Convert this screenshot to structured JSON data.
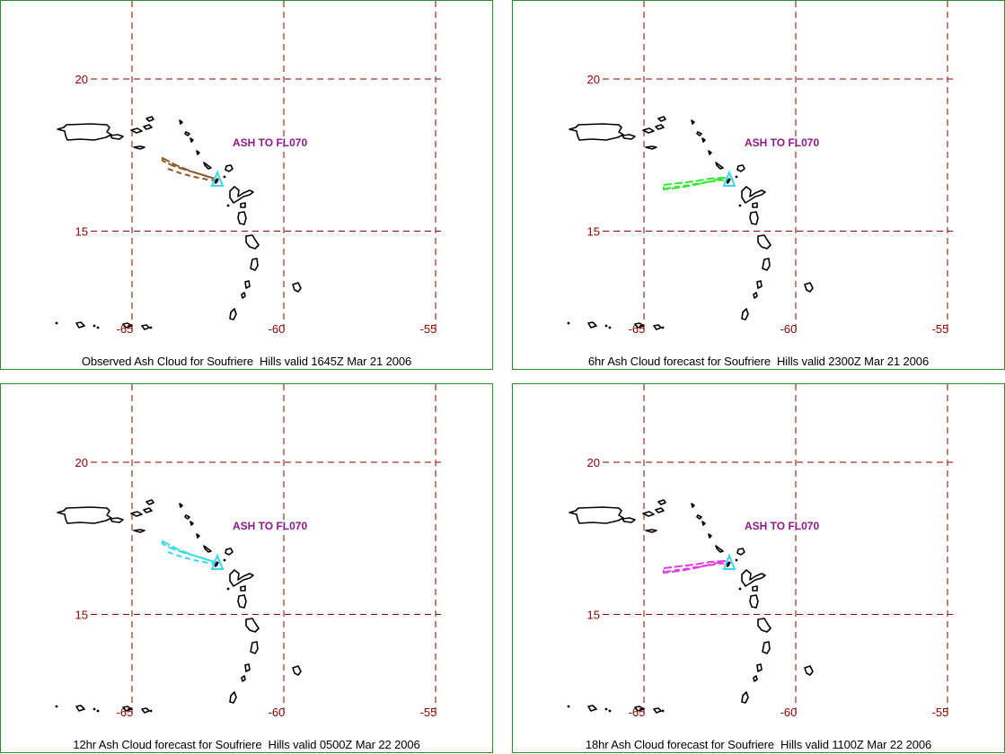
{
  "map": {
    "lon_ticks": [
      -65,
      -60,
      -55
    ],
    "lat_ticks": [
      20,
      15
    ],
    "volcano_color": "#3ad8e8",
    "grid_color": "#8b0000",
    "coastline_color": "#000000"
  },
  "panels": [
    {
      "caption": "Observed Ash Cloud for Soufriere  Hills valid 1645Z Mar 21 2006",
      "ash_label": "ASH TO FL070",
      "cloud_color": "#8b5a2b",
      "cloud_shape": "plume_nw"
    },
    {
      "caption": "6hr Ash Cloud forecast for Soufriere  Hills valid 2300Z Mar 21 2006",
      "ash_label": "ASH TO FL070",
      "cloud_color": "#33e833",
      "cloud_shape": "plume_w"
    },
    {
      "caption": "12hr Ash Cloud forecast for Soufriere  Hills valid 0500Z Mar 22 2006",
      "ash_label": "ASH TO FL070",
      "cloud_color": "#3ad8e8",
      "cloud_shape": "plume_nw"
    },
    {
      "caption": "18hr Ash Cloud forecast for Soufriere  Hills valid 1100Z Mar 22 2006",
      "ash_label": "ASH TO FL070",
      "cloud_color": "#e03ae0",
      "cloud_shape": "plume_w"
    }
  ]
}
